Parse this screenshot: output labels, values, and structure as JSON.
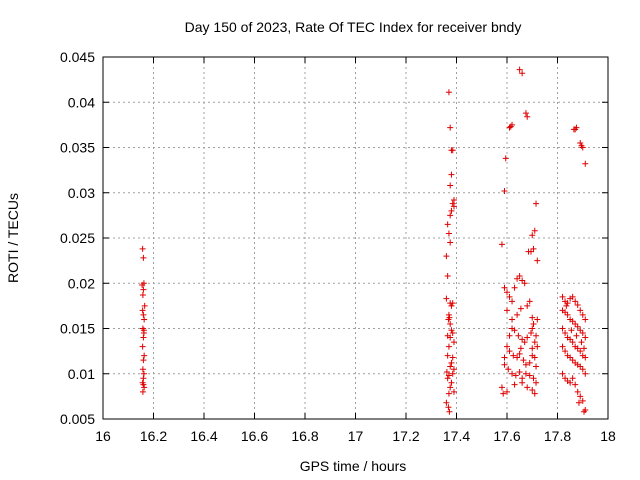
{
  "chart_data": {
    "type": "scatter",
    "title": "Day 150 of 2023, Rate Of TEC Index for receiver bndy",
    "xlabel": "GPS time / hours",
    "ylabel": "ROTI / TECUs",
    "xlim": [
      16,
      18
    ],
    "ylim": [
      0.005,
      0.045
    ],
    "xticks": [
      16,
      16.2,
      16.4,
      16.6,
      16.8,
      17,
      17.2,
      17.4,
      17.6,
      17.8,
      18
    ],
    "xtick_labels": [
      "16",
      "16.2",
      "16.4",
      "16.6",
      "16.8",
      "17",
      "17.2",
      "17.4",
      "17.6",
      "17.8",
      "18"
    ],
    "yticks": [
      0.005,
      0.01,
      0.015,
      0.02,
      0.025,
      0.03,
      0.035,
      0.04,
      0.045
    ],
    "ytick_labels": [
      "0.005",
      "0.01",
      "0.015",
      "0.02",
      "0.025",
      "0.03",
      "0.035",
      "0.04",
      "0.045"
    ],
    "grid": true,
    "marker_color": "#e00000",
    "series": [
      {
        "name": "ROTI",
        "points": [
          [
            16.157,
            0.0238
          ],
          [
            16.16,
            0.0228
          ],
          [
            16.155,
            0.0198
          ],
          [
            16.16,
            0.0193
          ],
          [
            16.158,
            0.0187
          ],
          [
            16.162,
            0.02
          ],
          [
            16.165,
            0.0175
          ],
          [
            16.157,
            0.017
          ],
          [
            16.16,
            0.0165
          ],
          [
            16.163,
            0.016
          ],
          [
            16.158,
            0.015
          ],
          [
            16.162,
            0.0145
          ],
          [
            16.16,
            0.014
          ],
          [
            16.157,
            0.013
          ],
          [
            16.163,
            0.012
          ],
          [
            16.16,
            0.0115
          ],
          [
            16.158,
            0.0105
          ],
          [
            16.162,
            0.01
          ],
          [
            16.16,
            0.0095
          ],
          [
            16.157,
            0.009
          ],
          [
            16.163,
            0.0085
          ],
          [
            16.158,
            0.008
          ],
          [
            16.16,
            0.0088
          ],
          [
            16.162,
            0.0148
          ],
          [
            17.37,
            0.0411
          ],
          [
            17.375,
            0.0372
          ],
          [
            17.38,
            0.0347
          ],
          [
            17.385,
            0.0347
          ],
          [
            17.38,
            0.032
          ],
          [
            17.375,
            0.0308
          ],
          [
            17.39,
            0.0292
          ],
          [
            17.385,
            0.0288
          ],
          [
            17.39,
            0.0285
          ],
          [
            17.38,
            0.028
          ],
          [
            17.375,
            0.0275
          ],
          [
            17.365,
            0.0265
          ],
          [
            17.37,
            0.0255
          ],
          [
            17.375,
            0.0245
          ],
          [
            17.36,
            0.023
          ],
          [
            17.365,
            0.0208
          ],
          [
            17.36,
            0.0183
          ],
          [
            17.375,
            0.0178
          ],
          [
            17.385,
            0.0178
          ],
          [
            17.38,
            0.0175
          ],
          [
            17.37,
            0.0165
          ],
          [
            17.368,
            0.016
          ],
          [
            17.372,
            0.0162
          ],
          [
            17.375,
            0.0155
          ],
          [
            17.38,
            0.0148
          ],
          [
            17.365,
            0.0142
          ],
          [
            17.375,
            0.014
          ],
          [
            17.385,
            0.0145
          ],
          [
            17.39,
            0.0135
          ],
          [
            17.37,
            0.013
          ],
          [
            17.365,
            0.012
          ],
          [
            17.38,
            0.0112
          ],
          [
            17.375,
            0.0108
          ],
          [
            17.39,
            0.0105
          ],
          [
            17.385,
            0.01
          ],
          [
            17.37,
            0.0098
          ],
          [
            17.365,
            0.0095
          ],
          [
            17.38,
            0.009
          ],
          [
            17.375,
            0.0085
          ],
          [
            17.39,
            0.008
          ],
          [
            17.37,
            0.0078
          ],
          [
            17.36,
            0.0068
          ],
          [
            17.368,
            0.0063
          ],
          [
            17.372,
            0.0058
          ],
          [
            17.385,
            0.0118
          ],
          [
            17.362,
            0.0102
          ],
          [
            17.58,
            0.0243
          ],
          [
            17.59,
            0.0302
          ],
          [
            17.595,
            0.0338
          ],
          [
            17.61,
            0.0372
          ],
          [
            17.62,
            0.0375
          ],
          [
            17.615,
            0.0373
          ],
          [
            17.65,
            0.0436
          ],
          [
            17.66,
            0.0432
          ],
          [
            17.675,
            0.0388
          ],
          [
            17.68,
            0.0384
          ],
          [
            17.7,
            0.0253
          ],
          [
            17.705,
            0.0238
          ],
          [
            17.695,
            0.0235
          ],
          [
            17.71,
            0.0258
          ],
          [
            17.715,
            0.0288
          ],
          [
            17.72,
            0.0225
          ],
          [
            17.685,
            0.0235
          ],
          [
            17.59,
            0.0195
          ],
          [
            17.6,
            0.019
          ],
          [
            17.61,
            0.0185
          ],
          [
            17.62,
            0.018
          ],
          [
            17.63,
            0.0195
          ],
          [
            17.64,
            0.0205
          ],
          [
            17.65,
            0.0208
          ],
          [
            17.66,
            0.0203
          ],
          [
            17.67,
            0.02
          ],
          [
            17.6,
            0.017
          ],
          [
            17.62,
            0.016
          ],
          [
            17.64,
            0.0165
          ],
          [
            17.655,
            0.0172
          ],
          [
            17.68,
            0.0175
          ],
          [
            17.69,
            0.018
          ],
          [
            17.62,
            0.015
          ],
          [
            17.63,
            0.0148
          ],
          [
            17.645,
            0.0142
          ],
          [
            17.66,
            0.0138
          ],
          [
            17.67,
            0.0135
          ],
          [
            17.68,
            0.014
          ],
          [
            17.695,
            0.0145
          ],
          [
            17.7,
            0.015
          ],
          [
            17.71,
            0.0135
          ],
          [
            17.72,
            0.013
          ],
          [
            17.6,
            0.013
          ],
          [
            17.61,
            0.0125
          ],
          [
            17.625,
            0.012
          ],
          [
            17.64,
            0.0118
          ],
          [
            17.65,
            0.0122
          ],
          [
            17.665,
            0.0115
          ],
          [
            17.675,
            0.011
          ],
          [
            17.69,
            0.0112
          ],
          [
            17.7,
            0.012
          ],
          [
            17.71,
            0.0118
          ],
          [
            17.715,
            0.0108
          ],
          [
            17.59,
            0.011
          ],
          [
            17.605,
            0.0105
          ],
          [
            17.62,
            0.01
          ],
          [
            17.635,
            0.0098
          ],
          [
            17.65,
            0.0102
          ],
          [
            17.66,
            0.0095
          ],
          [
            17.675,
            0.01
          ],
          [
            17.69,
            0.0098
          ],
          [
            17.705,
            0.0095
          ],
          [
            17.715,
            0.009
          ],
          [
            17.58,
            0.0085
          ],
          [
            17.6,
            0.008
          ],
          [
            17.63,
            0.0088
          ],
          [
            17.66,
            0.009
          ],
          [
            17.68,
            0.0085
          ],
          [
            17.7,
            0.0082
          ],
          [
            17.71,
            0.0078
          ],
          [
            17.585,
            0.0078
          ],
          [
            17.7,
            0.0162
          ],
          [
            17.705,
            0.0155
          ],
          [
            17.72,
            0.016
          ],
          [
            17.59,
            0.0118
          ],
          [
            17.61,
            0.0142
          ],
          [
            17.655,
            0.0128
          ],
          [
            17.7,
            0.0128
          ],
          [
            17.715,
            0.0142
          ],
          [
            17.82,
            0.0185
          ],
          [
            17.83,
            0.018
          ],
          [
            17.84,
            0.0178
          ],
          [
            17.85,
            0.0183
          ],
          [
            17.86,
            0.0185
          ],
          [
            17.87,
            0.018
          ],
          [
            17.88,
            0.0176
          ],
          [
            17.89,
            0.017
          ],
          [
            17.9,
            0.0165
          ],
          [
            17.91,
            0.016
          ],
          [
            17.82,
            0.017
          ],
          [
            17.83,
            0.0168
          ],
          [
            17.84,
            0.0165
          ],
          [
            17.85,
            0.016
          ],
          [
            17.86,
            0.0158
          ],
          [
            17.87,
            0.0155
          ],
          [
            17.88,
            0.0152
          ],
          [
            17.89,
            0.0148
          ],
          [
            17.9,
            0.0145
          ],
          [
            17.91,
            0.014
          ],
          [
            17.82,
            0.015
          ],
          [
            17.83,
            0.0145
          ],
          [
            17.84,
            0.014
          ],
          [
            17.85,
            0.0138
          ],
          [
            17.86,
            0.0135
          ],
          [
            17.87,
            0.013
          ],
          [
            17.88,
            0.0128
          ],
          [
            17.89,
            0.0125
          ],
          [
            17.9,
            0.012
          ],
          [
            17.91,
            0.0118
          ],
          [
            17.82,
            0.013
          ],
          [
            17.83,
            0.0125
          ],
          [
            17.84,
            0.012
          ],
          [
            17.85,
            0.0118
          ],
          [
            17.86,
            0.0115
          ],
          [
            17.87,
            0.0112
          ],
          [
            17.88,
            0.011
          ],
          [
            17.89,
            0.0108
          ],
          [
            17.9,
            0.0105
          ],
          [
            17.91,
            0.01
          ],
          [
            17.82,
            0.01
          ],
          [
            17.83,
            0.0095
          ],
          [
            17.84,
            0.0092
          ],
          [
            17.85,
            0.009
          ],
          [
            17.86,
            0.0095
          ],
          [
            17.87,
            0.0088
          ],
          [
            17.88,
            0.008
          ],
          [
            17.89,
            0.0075
          ],
          [
            17.9,
            0.007
          ],
          [
            17.91,
            0.006
          ],
          [
            17.87,
            0.037
          ],
          [
            17.875,
            0.0372
          ],
          [
            17.865,
            0.037
          ],
          [
            17.89,
            0.0355
          ],
          [
            17.895,
            0.0352
          ],
          [
            17.9,
            0.035
          ],
          [
            17.91,
            0.0332
          ],
          [
            17.905,
            0.0058
          ],
          [
            17.885,
            0.0068
          ],
          [
            17.835,
            0.0175
          ],
          [
            17.855,
            0.0148
          ],
          [
            17.875,
            0.0142
          ],
          [
            17.895,
            0.0135
          ],
          [
            17.905,
            0.0128
          ]
        ]
      }
    ]
  }
}
